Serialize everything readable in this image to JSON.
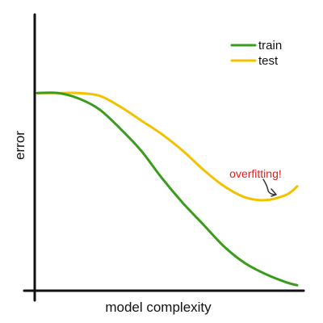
{
  "chart_data": {
    "type": "line",
    "xlabel": "model complexity",
    "ylabel": "error",
    "xlim": [
      0,
      1
    ],
    "ylim": [
      0,
      1
    ],
    "grid": false,
    "legend": "top-right",
    "series": [
      {
        "name": "train",
        "color": "#3a9c1c",
        "x": [
          0,
          0.08,
          0.16,
          0.24,
          0.32,
          0.4,
          0.48,
          0.56,
          0.64,
          0.72,
          0.8,
          0.88,
          0.96,
          1.0
        ],
        "y": [
          0.72,
          0.72,
          0.7,
          0.66,
          0.59,
          0.51,
          0.41,
          0.32,
          0.24,
          0.16,
          0.1,
          0.06,
          0.03,
          0.02
        ]
      },
      {
        "name": "test",
        "color": "#f2c200",
        "x": [
          0,
          0.08,
          0.16,
          0.24,
          0.32,
          0.4,
          0.48,
          0.56,
          0.64,
          0.72,
          0.8,
          0.88,
          0.96,
          1.0
        ],
        "y": [
          0.72,
          0.72,
          0.72,
          0.71,
          0.67,
          0.62,
          0.57,
          0.51,
          0.44,
          0.38,
          0.34,
          0.33,
          0.35,
          0.38
        ]
      }
    ],
    "annotations": [
      {
        "text": "overfitting!",
        "color": "#e02020",
        "x": 0.84,
        "y": 0.5
      }
    ]
  }
}
